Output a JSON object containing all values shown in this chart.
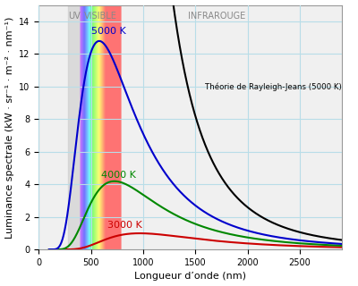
{
  "title": "",
  "xlabel": "Longueur d’onde (nm)",
  "ylabel": "Luminance spectrale (kW · sr⁻¹ · m⁻² · nm⁻¹)",
  "xlim": [
    0,
    2900
  ],
  "ylim": [
    0,
    15
  ],
  "yticks": [
    0,
    2,
    4,
    6,
    8,
    10,
    12,
    14
  ],
  "xticks": [
    0,
    500,
    1000,
    1500,
    2000,
    2500
  ],
  "grid_color": "#b8dde8",
  "background_color": "#f0f0f0",
  "plot_bg_color": "#f0f0f0",
  "uv_region": [
    280,
    400
  ],
  "visible_region": [
    400,
    780
  ],
  "uv_label": "UV",
  "visible_label": "VISIBLE",
  "ir_label": "INFRAROUGE",
  "temperatures": [
    3000,
    4000,
    5000
  ],
  "colors": [
    "#cc0000",
    "#008800",
    "#0000cc"
  ],
  "labels": [
    "3000 K",
    "4000 K",
    "5000 K"
  ],
  "rayleigh_color": "#000000",
  "rayleigh_label": "Théorie de Rayleigh-Jeans (5000 K)",
  "annotation_fontsize": 8,
  "axis_label_fontsize": 8,
  "tick_fontsize": 7,
  "region_label_fontsize": 7
}
